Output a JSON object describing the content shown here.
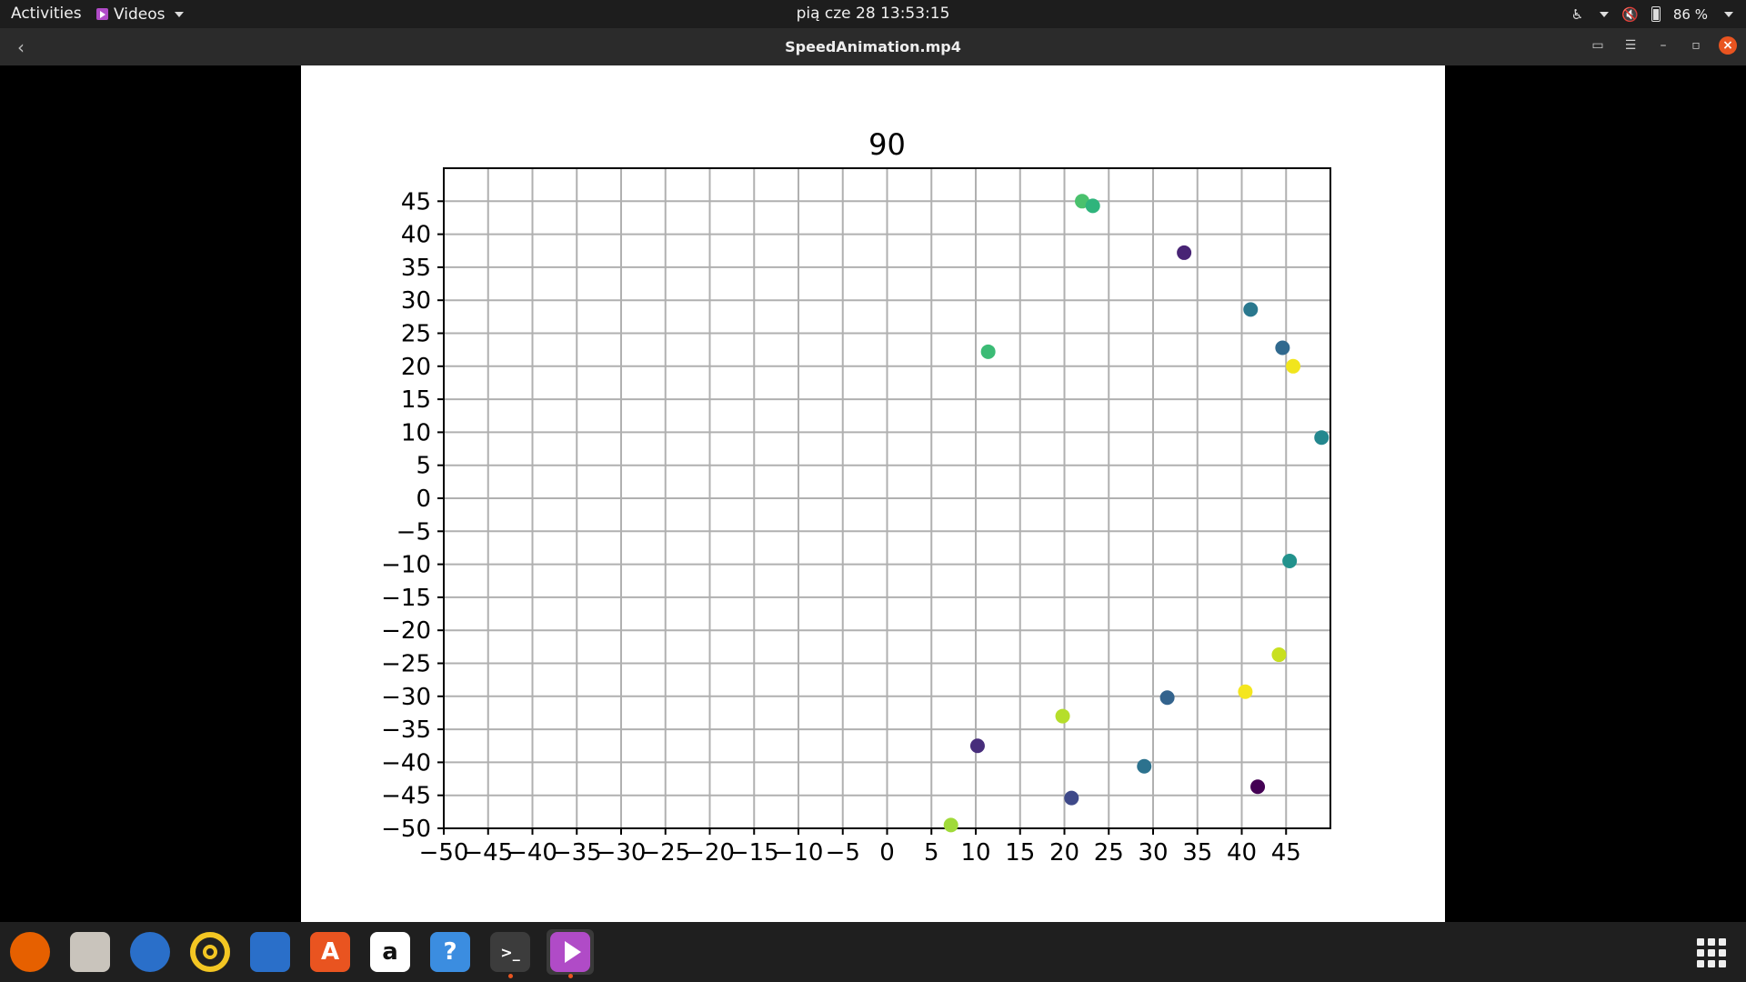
{
  "topbar": {
    "activities": "Activities",
    "app_menu": "Videos",
    "clock": "pią cze 28  13:53:15",
    "battery": "86 %"
  },
  "window": {
    "title": "SpeedAnimation.mp4"
  },
  "chart_data": {
    "type": "scatter",
    "title": "90",
    "xlabel": "",
    "ylabel": "",
    "xlim": [
      -50,
      50
    ],
    "ylim": [
      -50,
      50
    ],
    "grid": true,
    "xticks": [
      "−50",
      "−45",
      "−40",
      "−35",
      "−30",
      "−25",
      "−20",
      "−15",
      "−10",
      "−5",
      "0",
      "5",
      "10",
      "15",
      "20",
      "25",
      "30",
      "35",
      "40",
      "45"
    ],
    "yticks": [
      "45",
      "40",
      "35",
      "30",
      "25",
      "20",
      "15",
      "10",
      "5",
      "0",
      "−5",
      "−10",
      "−15",
      "−20",
      "−25",
      "−30",
      "−35",
      "−40",
      "−45",
      "−50"
    ],
    "points": [
      {
        "x": 22.0,
        "y": 45.0,
        "color": "#4ac16d"
      },
      {
        "x": 23.2,
        "y": 44.3,
        "color": "#2fb47c"
      },
      {
        "x": 33.5,
        "y": 37.2,
        "color": "#482475"
      },
      {
        "x": 41.0,
        "y": 28.6,
        "color": "#2a788e"
      },
      {
        "x": 11.4,
        "y": 22.2,
        "color": "#3bbb75"
      },
      {
        "x": 44.6,
        "y": 22.8,
        "color": "#30698e"
      },
      {
        "x": 45.8,
        "y": 20.0,
        "color": "#f1e51d"
      },
      {
        "x": 49.0,
        "y": 9.2,
        "color": "#24878e"
      },
      {
        "x": 45.4,
        "y": -9.5,
        "color": "#22928c"
      },
      {
        "x": 44.2,
        "y": -23.7,
        "color": "#c8e020"
      },
      {
        "x": 40.4,
        "y": -29.3,
        "color": "#f4e61e"
      },
      {
        "x": 31.6,
        "y": -30.2,
        "color": "#33638d"
      },
      {
        "x": 19.8,
        "y": -33.0,
        "color": "#b5de2b"
      },
      {
        "x": 10.2,
        "y": -37.5,
        "color": "#472d7b"
      },
      {
        "x": 29.0,
        "y": -40.6,
        "color": "#2c728e"
      },
      {
        "x": 20.8,
        "y": -45.4,
        "color": "#3e4989"
      },
      {
        "x": 41.8,
        "y": -43.7,
        "color": "#440154"
      },
      {
        "x": 7.2,
        "y": -49.5,
        "color": "#a0da39"
      }
    ]
  },
  "dock": {
    "items": [
      {
        "name": "firefox",
        "color": "#e66000",
        "glyph": "",
        "active": false,
        "running": false
      },
      {
        "name": "files",
        "color": "#c9c4bc",
        "glyph": "",
        "active": false,
        "running": false
      },
      {
        "name": "thunderbird",
        "color": "#2a6fc9",
        "glyph": "",
        "active": false,
        "running": false
      },
      {
        "name": "rhythmbox",
        "color": "#f3c623",
        "glyph": "",
        "active": false,
        "running": false
      },
      {
        "name": "libreoffice-writer",
        "color": "#2a6fc9",
        "glyph": "",
        "active": false,
        "running": false
      },
      {
        "name": "software",
        "color": "#e95420",
        "glyph": "A",
        "active": false,
        "running": false
      },
      {
        "name": "amazon",
        "color": "#ffffff",
        "glyph": "a",
        "active": false,
        "running": false
      },
      {
        "name": "help",
        "color": "#3b8de0",
        "glyph": "?",
        "active": false,
        "running": false
      },
      {
        "name": "terminal",
        "color": "#3c3c3c",
        "glyph": ">_",
        "active": false,
        "running": true
      },
      {
        "name": "videos",
        "color": "#b04bc7",
        "glyph": "",
        "active": true,
        "running": true
      }
    ]
  }
}
